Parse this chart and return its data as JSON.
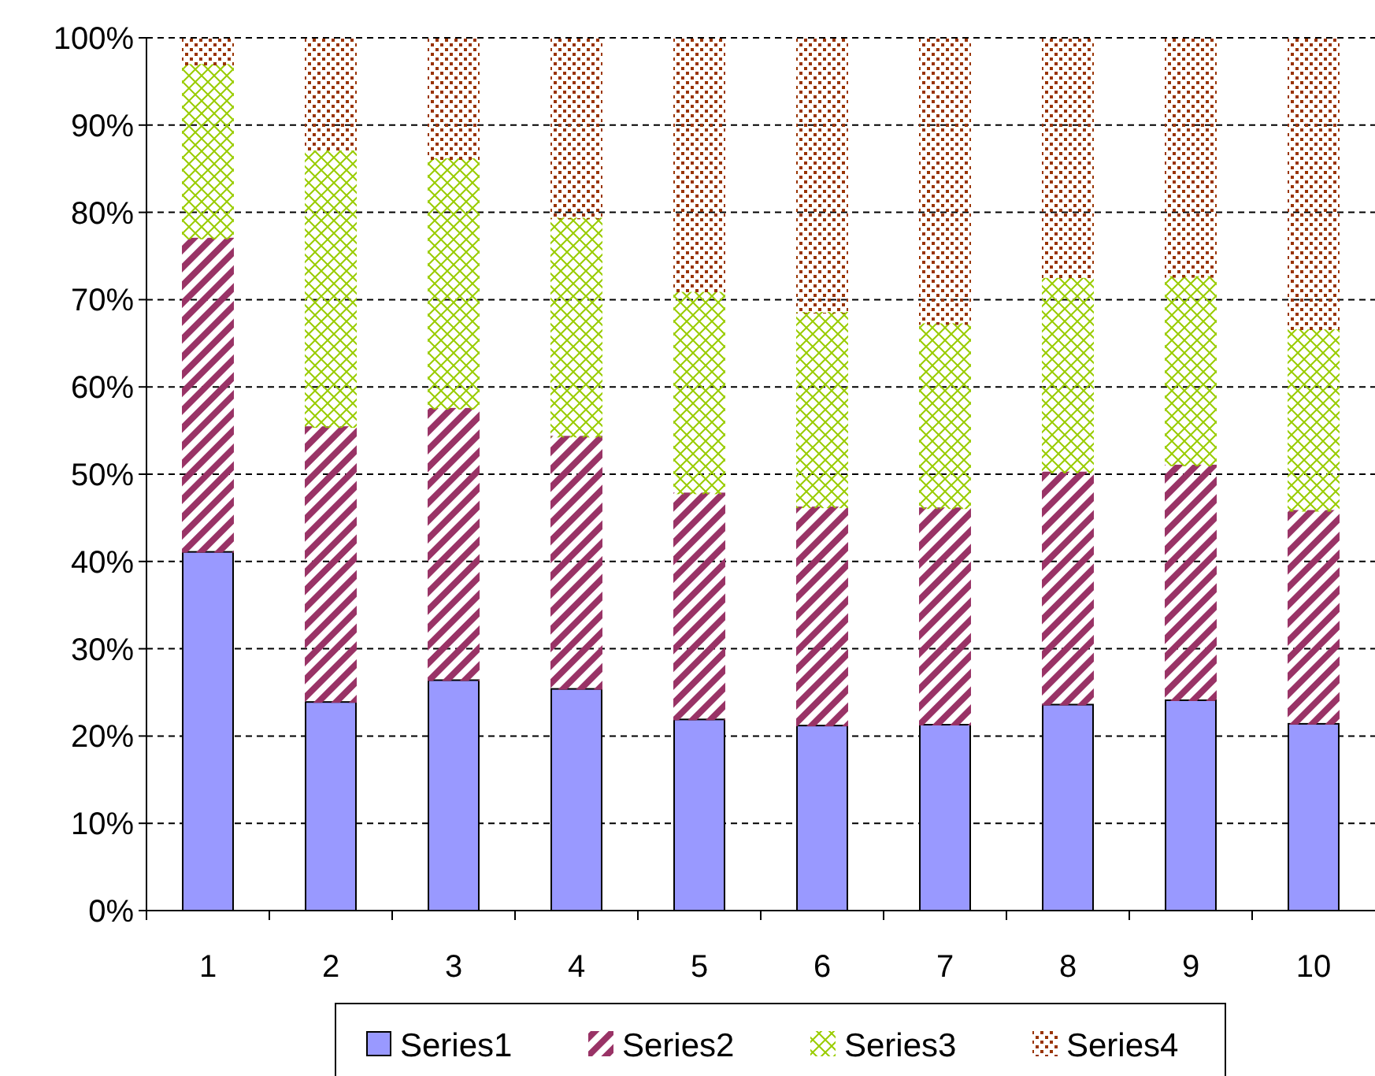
{
  "chart_data": {
    "type": "bar",
    "stacked": true,
    "categories": [
      "1",
      "2",
      "3",
      "4",
      "5",
      "6",
      "7",
      "8",
      "9",
      "10"
    ],
    "series": [
      {
        "name": "Series1",
        "color": "#9999ff",
        "values": [
          41.1,
          23.9,
          26.4,
          25.4,
          21.9,
          21.2,
          21.3,
          23.6,
          24.1,
          21.4
        ]
      },
      {
        "name": "Series2",
        "color": "#993366",
        "values": [
          35.9,
          31.5,
          31.1,
          28.9,
          25.9,
          25.0,
          24.8,
          26.6,
          26.9,
          24.4
        ]
      },
      {
        "name": "Series3",
        "color": "#99cc00",
        "values": [
          19.9,
          31.6,
          28.6,
          25.0,
          23.0,
          22.3,
          21.1,
          22.2,
          21.6,
          20.7
        ]
      },
      {
        "name": "Series4",
        "color": "#993300",
        "values": [
          3.1,
          13.0,
          13.9,
          20.7,
          29.2,
          31.5,
          32.8,
          27.6,
          27.4,
          33.5
        ]
      }
    ],
    "ylim": [
      0,
      100
    ],
    "yticks": [
      {
        "value": 0,
        "label": "0%"
      },
      {
        "value": 10,
        "label": "10%"
      },
      {
        "value": 20,
        "label": "20%"
      },
      {
        "value": 30,
        "label": "30%"
      },
      {
        "value": 40,
        "label": "40%"
      },
      {
        "value": 50,
        "label": "50%"
      },
      {
        "value": 60,
        "label": "60%"
      },
      {
        "value": 70,
        "label": "70%"
      },
      {
        "value": 80,
        "label": "80%"
      },
      {
        "value": 90,
        "label": "90%"
      },
      {
        "value": 100,
        "label": "100%"
      }
    ],
    "grid": "y",
    "legend": "bottom"
  }
}
